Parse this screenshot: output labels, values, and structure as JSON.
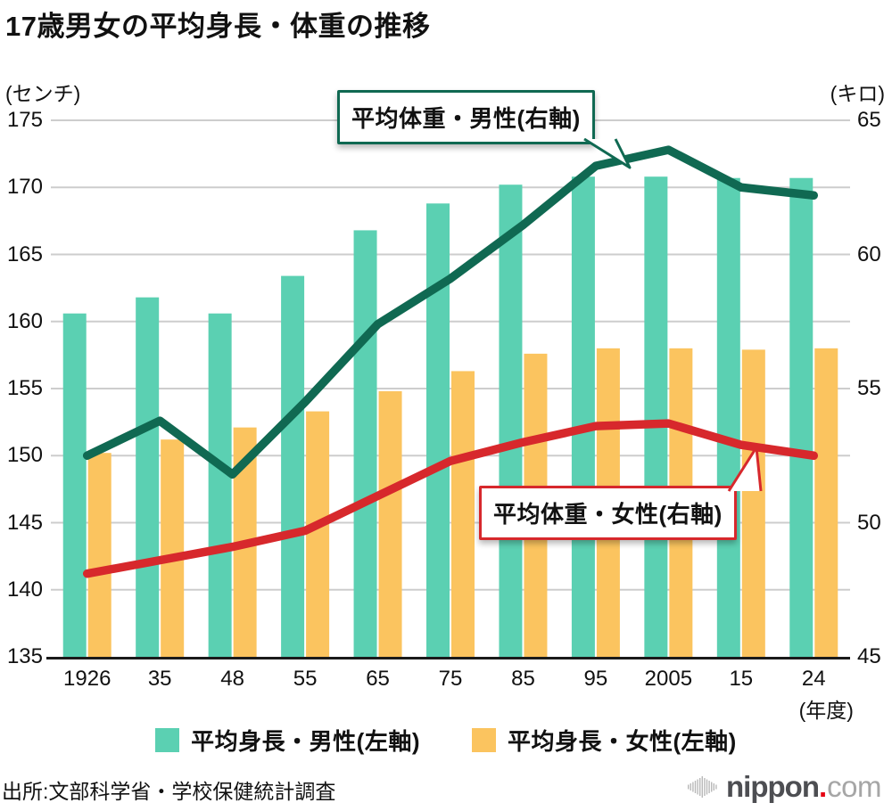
{
  "title": "17歳男女の平均身長・体重の推移",
  "left_axis": {
    "unit": "(センチ)",
    "ticks": [
      175,
      170,
      165,
      160,
      155,
      150,
      145,
      140,
      135
    ]
  },
  "right_axis": {
    "unit": "(キロ)",
    "ticks": [
      65,
      60,
      55,
      50,
      45
    ]
  },
  "x_axis": {
    "labels": [
      "1926",
      "35",
      "48",
      "55",
      "65",
      "75",
      "85",
      "95",
      "2005",
      "15",
      "24"
    ],
    "suffix": "(年度)"
  },
  "annotations": {
    "male_weight_label": "平均体重・男性(右軸)",
    "female_weight_label": "平均体重・女性(右軸)"
  },
  "legend": [
    {
      "label": "平均身長・男性(左軸)",
      "color": "#5bd0b2"
    },
    {
      "label": "平均身長・女性(左軸)",
      "color": "#fbc45f"
    }
  ],
  "source": "出所:文部科学省・学校保健統計調査",
  "logo": {
    "name": "nippon",
    "dot": ".",
    "tld": "com"
  },
  "colors": {
    "male_height_bar": "#5bd0b2",
    "female_height_bar": "#fbc45f",
    "male_weight_line": "#106952",
    "female_weight_line": "#d7282c",
    "gridline": "#cdcdcd",
    "axis": "#1a1a1a"
  },
  "chart_data": {
    "type": "bar+line combo, dual axis",
    "categories": [
      "1926",
      "35",
      "48",
      "55",
      "65",
      "75",
      "85",
      "95",
      "2005",
      "15",
      "24"
    ],
    "left_ylim": [
      135,
      175
    ],
    "right_ylim": [
      45,
      65
    ],
    "left_axis_unit": "センチ",
    "right_axis_unit": "キロ",
    "series": [
      {
        "name": "平均身長・男性(左軸)",
        "type": "bar",
        "axis": "left",
        "color": "#5bd0b2",
        "values": [
          160.6,
          161.8,
          160.6,
          163.4,
          166.8,
          168.8,
          170.2,
          170.8,
          170.8,
          170.7,
          170.7
        ]
      },
      {
        "name": "平均身長・女性(左軸)",
        "type": "bar",
        "axis": "left",
        "color": "#fbc45f",
        "values": [
          150.2,
          151.2,
          152.1,
          153.3,
          154.8,
          156.3,
          157.6,
          158.0,
          158.0,
          157.9,
          158.0
        ]
      },
      {
        "name": "平均体重・男性(右軸)",
        "type": "line",
        "axis": "right",
        "color": "#106952",
        "values": [
          52.5,
          53.8,
          51.8,
          54.5,
          57.4,
          59.1,
          61.1,
          63.3,
          63.9,
          62.5,
          62.2
        ]
      },
      {
        "name": "平均体重・女性(右軸)",
        "type": "line",
        "axis": "right",
        "color": "#d7282c",
        "values": [
          48.1,
          48.6,
          49.1,
          49.7,
          51.0,
          52.3,
          53.0,
          53.6,
          53.7,
          52.9,
          52.5
        ]
      }
    ]
  }
}
